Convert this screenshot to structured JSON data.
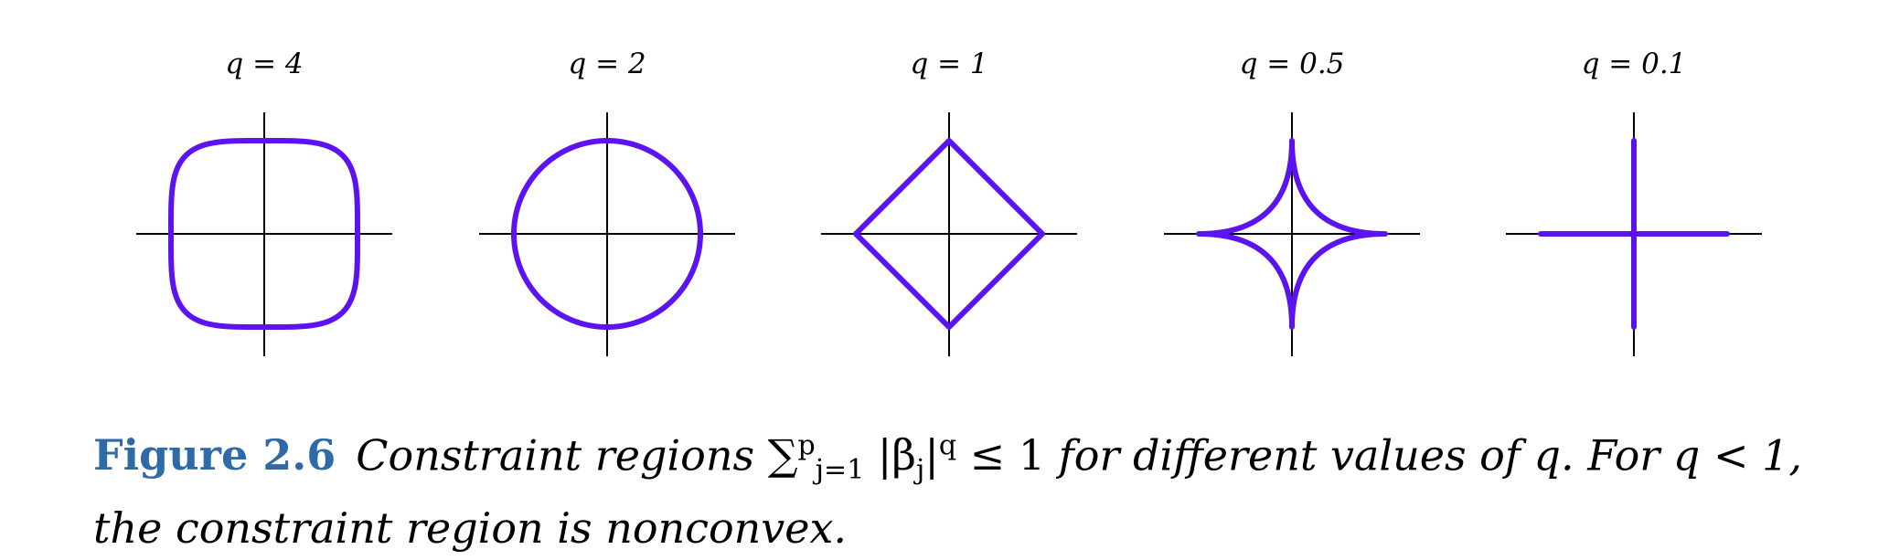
{
  "panels": [
    {
      "title": "q = 4",
      "q": 4
    },
    {
      "title": "q = 2",
      "q": 2
    },
    {
      "title": "q = 1",
      "q": 1
    },
    {
      "title": "q = 0.5",
      "q": 0.5
    },
    {
      "title": "q = 0.1",
      "q": 0.1
    }
  ],
  "colors": {
    "curve": "#5b14f0",
    "axes": "#000000",
    "caption_label": "#2e6aa6"
  },
  "caption": {
    "label": "Figure 2.6",
    "text_before": "Constraint regions",
    "math_sum": "∑",
    "math_sup": "p",
    "math_sub": "j=1",
    "math_body": "|β",
    "math_body_sub": "j",
    "math_body_rest": "|",
    "math_body_sup": "q",
    "math_tail": " ≤ 1",
    "text_after": "for different values of q. For q < 1, the constraint region is nonconvex."
  }
}
